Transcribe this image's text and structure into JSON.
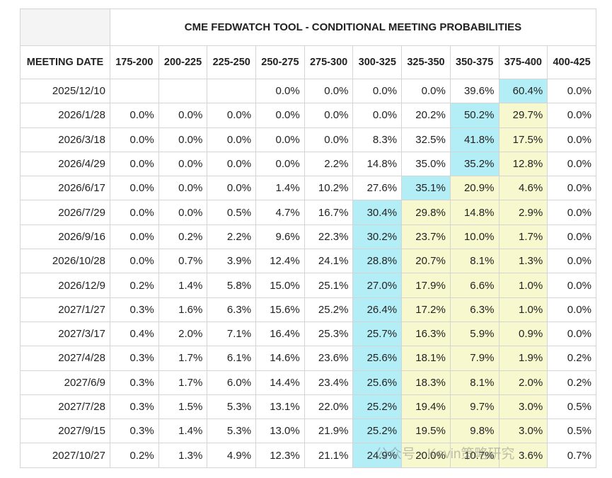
{
  "title": "CME FEDWATCH TOOL - CONDITIONAL MEETING PROBABILITIES",
  "header": [
    "MEETING DATE",
    "175-200",
    "200-225",
    "225-250",
    "250-275",
    "275-300",
    "300-325",
    "325-350",
    "350-375",
    "375-400",
    "400-425"
  ],
  "rows": [
    [
      "2025/12/10",
      null,
      null,
      null,
      "0.0%",
      "0.0%",
      "0.0%",
      "0.0%",
      "39.6%",
      "60.4%",
      "0.0%"
    ],
    [
      "2026/1/28",
      "0.0%",
      "0.0%",
      "0.0%",
      "0.0%",
      "0.0%",
      "0.0%",
      "20.2%",
      "50.2%",
      "29.7%",
      "0.0%"
    ],
    [
      "2026/3/18",
      "0.0%",
      "0.0%",
      "0.0%",
      "0.0%",
      "0.0%",
      "8.3%",
      "32.5%",
      "41.8%",
      "17.5%",
      "0.0%"
    ],
    [
      "2026/4/29",
      "0.0%",
      "0.0%",
      "0.0%",
      "0.0%",
      "2.2%",
      "14.8%",
      "35.0%",
      "35.2%",
      "12.8%",
      "0.0%"
    ],
    [
      "2026/6/17",
      "0.0%",
      "0.0%",
      "0.0%",
      "1.4%",
      "10.2%",
      "27.6%",
      "35.1%",
      "20.9%",
      "4.6%",
      "0.0%"
    ],
    [
      "2026/7/29",
      "0.0%",
      "0.0%",
      "0.5%",
      "4.7%",
      "16.7%",
      "30.4%",
      "29.8%",
      "14.8%",
      "2.9%",
      "0.0%"
    ],
    [
      "2026/9/16",
      "0.0%",
      "0.2%",
      "2.2%",
      "9.6%",
      "22.3%",
      "30.2%",
      "23.7%",
      "10.0%",
      "1.7%",
      "0.0%"
    ],
    [
      "2026/10/28",
      "0.0%",
      "0.7%",
      "3.9%",
      "12.4%",
      "24.1%",
      "28.8%",
      "20.7%",
      "8.1%",
      "1.3%",
      "0.0%"
    ],
    [
      "2026/12/9",
      "0.2%",
      "1.4%",
      "5.8%",
      "15.0%",
      "25.1%",
      "27.0%",
      "17.9%",
      "6.6%",
      "1.0%",
      "0.0%"
    ],
    [
      "2027/1/27",
      "0.3%",
      "1.6%",
      "6.3%",
      "15.6%",
      "25.2%",
      "26.4%",
      "17.2%",
      "6.3%",
      "1.0%",
      "0.0%"
    ],
    [
      "2027/3/17",
      "0.4%",
      "2.0%",
      "7.1%",
      "16.4%",
      "25.3%",
      "25.7%",
      "16.3%",
      "5.9%",
      "0.9%",
      "0.0%"
    ],
    [
      "2027/4/28",
      "0.3%",
      "1.7%",
      "6.1%",
      "14.6%",
      "23.6%",
      "25.6%",
      "18.1%",
      "7.9%",
      "1.9%",
      "0.2%"
    ],
    [
      "2027/6/9",
      "0.3%",
      "1.7%",
      "6.0%",
      "14.4%",
      "23.4%",
      "25.6%",
      "18.3%",
      "8.1%",
      "2.0%",
      "0.2%"
    ],
    [
      "2027/7/28",
      "0.3%",
      "1.5%",
      "5.3%",
      "13.1%",
      "22.0%",
      "25.2%",
      "19.4%",
      "9.7%",
      "3.0%",
      "0.5%"
    ],
    [
      "2027/9/15",
      "0.3%",
      "1.4%",
      "5.3%",
      "13.0%",
      "21.9%",
      "25.2%",
      "19.5%",
      "9.8%",
      "3.0%",
      "0.5%"
    ],
    [
      "2027/10/27",
      "0.2%",
      "1.3%",
      "4.9%",
      "12.3%",
      "21.1%",
      "24.9%",
      "20.0%",
      "10.7%",
      "3.6%",
      "0.7%"
    ]
  ],
  "watermark": "公众号 · Kevin策略研究"
}
